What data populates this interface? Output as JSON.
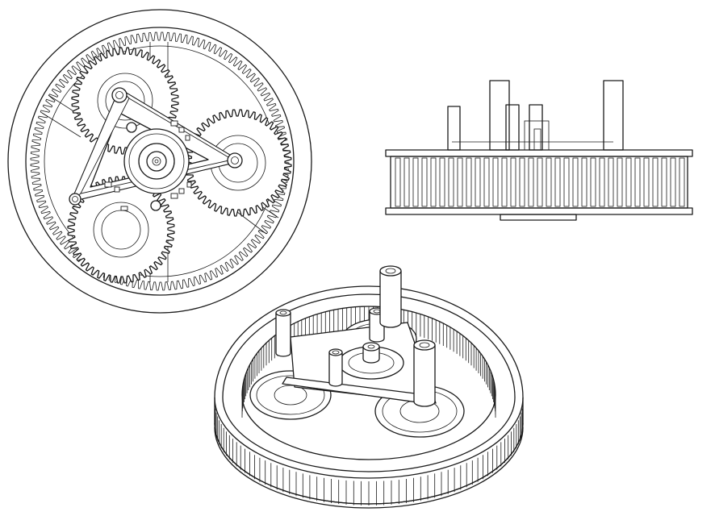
{
  "figure": {
    "views": [
      {
        "id": "top",
        "label": ""
      },
      {
        "id": "side",
        "label": ""
      },
      {
        "id": "isometric",
        "label": ""
      }
    ],
    "colors": {
      "line": "#1a1a1a",
      "background": "#ffffff"
    },
    "ring_gear_teeth": 132,
    "planet_gear_teeth": 48,
    "planet_count": 3,
    "outer_belt_teeth": 64
  }
}
